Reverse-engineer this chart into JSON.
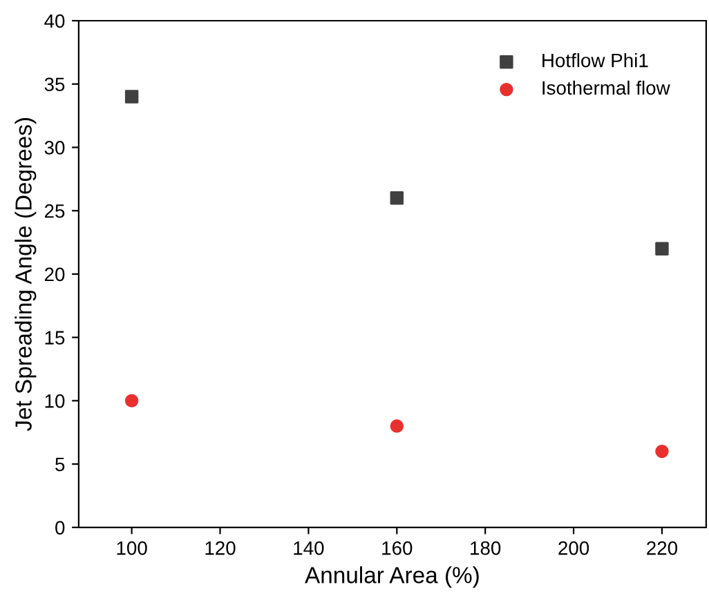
{
  "chart_data": {
    "type": "scatter",
    "xlabel": "Annular Area (%)",
    "ylabel": "Jet Spreading Angle (Degrees)",
    "x": [
      100,
      160,
      220
    ],
    "series": [
      {
        "name": "Hotflow Phi1",
        "color": "#404040",
        "marker": "square",
        "values": [
          34,
          26,
          22
        ]
      },
      {
        "name": "Isothermal flow",
        "color": "#e8312f",
        "marker": "circle",
        "values": [
          10,
          8,
          6
        ]
      }
    ],
    "xlim": [
      88,
      230
    ],
    "xticks": [
      100,
      120,
      140,
      160,
      180,
      200,
      220
    ],
    "ylim": [
      0,
      40
    ],
    "yticks": [
      0,
      5,
      10,
      15,
      20,
      25,
      30,
      35,
      40
    ],
    "legend": "top right",
    "grid": false
  }
}
